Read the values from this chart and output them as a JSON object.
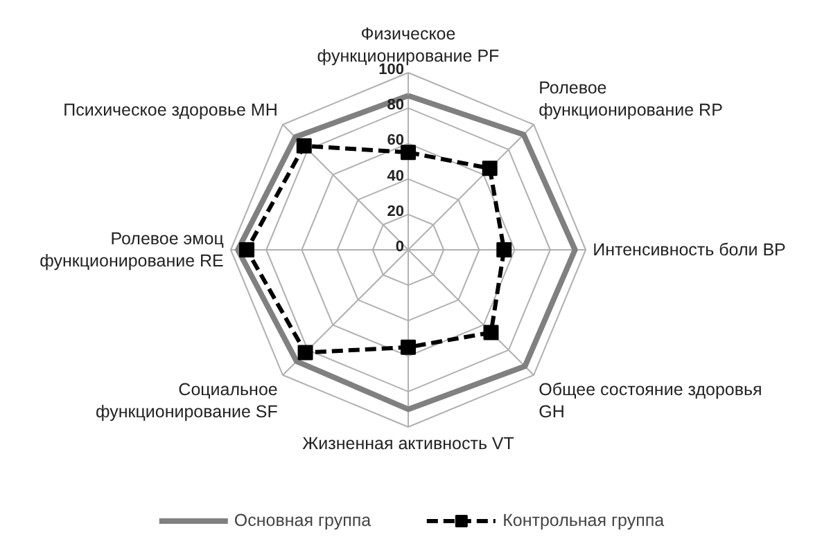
{
  "chart_data": {
    "type": "radar",
    "categories": [
      "Физическое\nфункционирование PF",
      "Ролевое\nфункционирование RP",
      "Интенсивность боли BP",
      "Общее состояние здоровья\nGH",
      "Жизненная активность VT",
      "Социальное\nфункционирование SF",
      "Ролевое эмоц\nфункционирование RE",
      "Психическое здоровье MH"
    ],
    "series": [
      {
        "name": "Основная группа",
        "color": "#808080",
        "line_style": "solid",
        "marker": "none",
        "values": [
          87,
          92,
          94,
          93,
          90,
          89,
          96,
          90
        ]
      },
      {
        "name": "Контрольная группа",
        "color": "#000000",
        "line_style": "dashed",
        "marker": "square",
        "values": [
          55,
          65,
          54,
          66,
          55,
          82,
          91,
          83
        ]
      }
    ],
    "ylim": [
      0,
      100
    ],
    "yticks": [
      0,
      20,
      40,
      60,
      80,
      100
    ],
    "grid": true,
    "legend": "bottom"
  }
}
